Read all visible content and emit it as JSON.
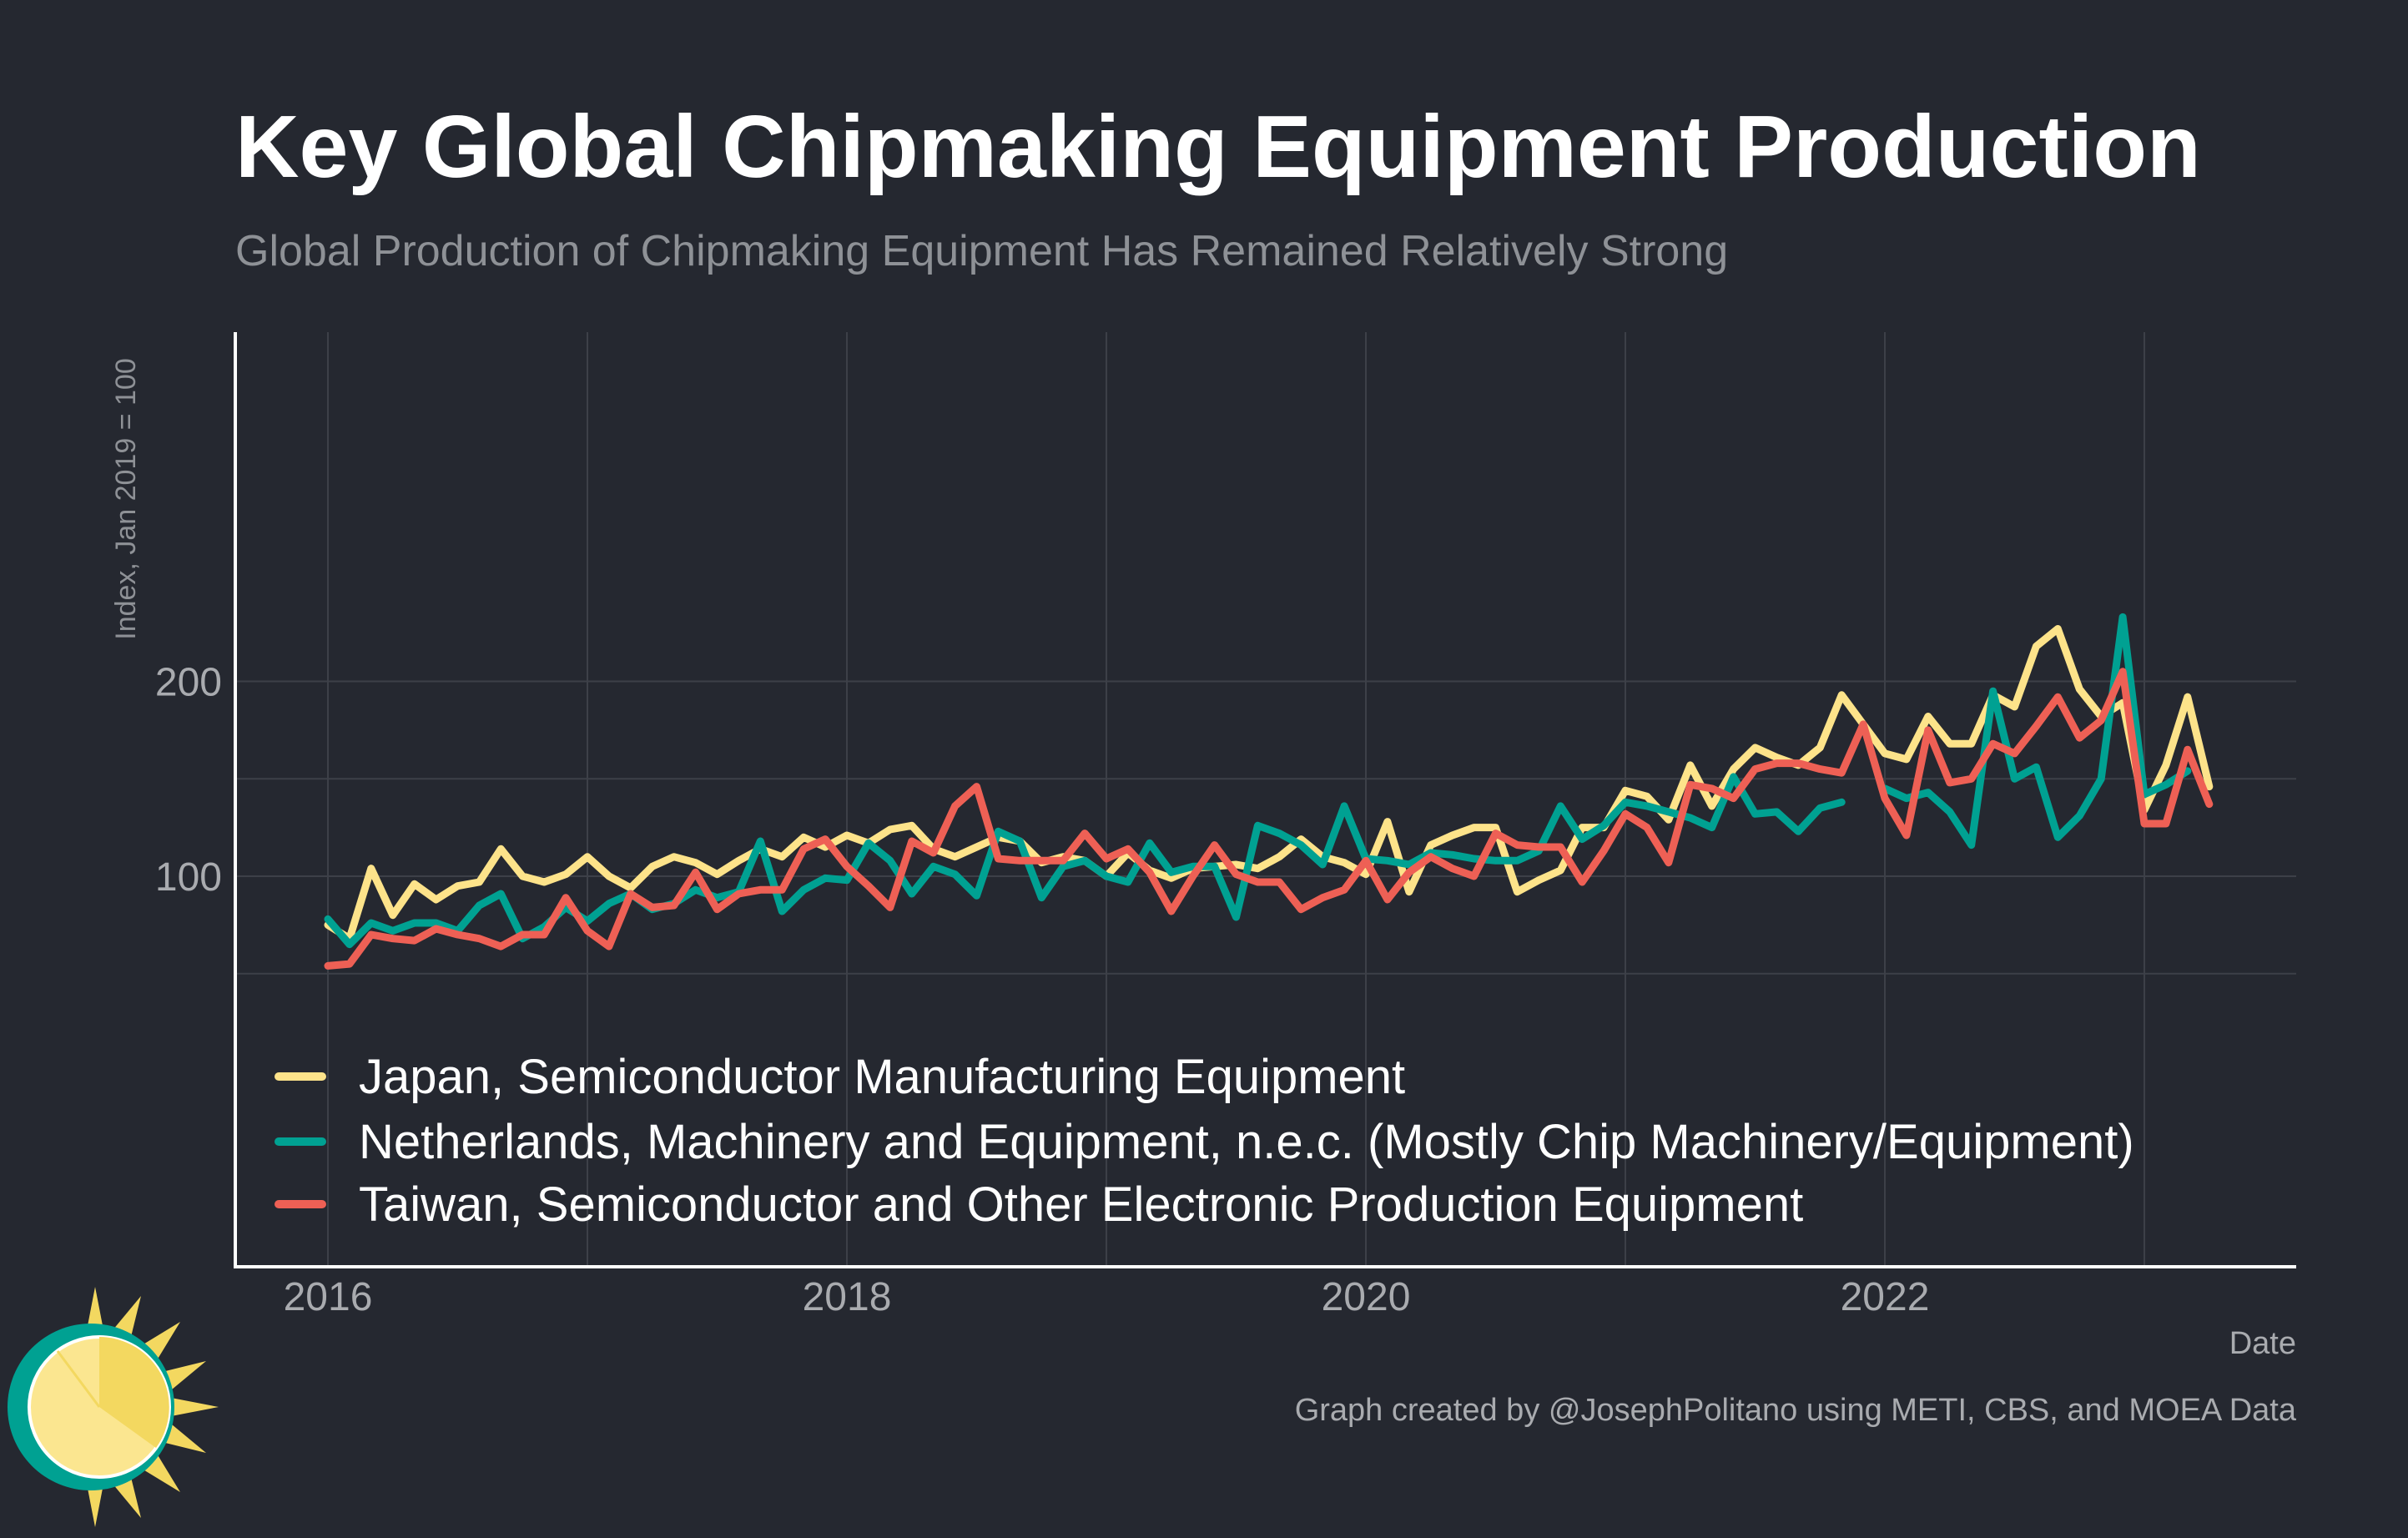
{
  "chart_data": {
    "type": "line",
    "title": "Key Global Chipmaking Equipment Production",
    "subtitle": "Global Production of Chipmaking Equipment Has Remained Relatively Strong",
    "ylabel": "Index, Jan 2019 = 100",
    "xlabel": "Date",
    "caption": "Graph created by @JosephPolitano using METI, CBS, and MOEA Data",
    "x_ticks": [
      "2016",
      "2018",
      "2020",
      "2022"
    ],
    "y_ticks": [
      "100",
      "200"
    ],
    "ylim": [
      0,
      240
    ],
    "xlim": [
      "2015-08",
      "2023-09"
    ],
    "grid": true,
    "legend_position": "bottom-left",
    "series": [
      {
        "name": "Japan, Semiconductor Manufacturing Equipment",
        "color": "#fde38a",
        "start": "2016-01",
        "values": [
          75,
          68,
          104,
          80,
          96,
          88,
          95,
          97,
          114,
          100,
          97,
          101,
          110,
          100,
          94,
          105,
          110,
          107,
          101,
          108,
          114,
          110,
          120,
          115,
          121,
          117,
          124,
          126,
          114,
          110,
          115,
          120,
          118,
          107,
          110,
          108,
          100,
          112,
          103,
          99,
          104,
          105,
          106,
          104,
          110,
          119,
          110,
          107,
          101,
          128,
          92,
          116,
          121,
          125,
          125,
          92,
          98,
          103,
          125,
          125,
          144,
          141,
          129,
          157,
          136,
          155,
          166,
          161,
          157,
          166,
          193,
          178,
          163,
          160,
          182,
          168,
          168,
          193,
          187,
          218,
          227,
          196,
          182,
          189,
          134,
          157,
          192,
          146
        ],
        "gaps": []
      },
      {
        "name": "Netherlands, Machinery and Equipment, n.e.c. (Mostly Chip Machinery/Equipment)",
        "color": "#00a192",
        "start": "2016-01",
        "values": [
          78,
          65,
          76,
          72,
          76,
          76,
          72,
          85,
          91,
          68,
          74,
          84,
          77,
          86,
          91,
          83,
          86,
          93,
          89,
          92,
          118,
          82,
          93,
          99,
          98,
          117,
          108,
          91,
          105,
          101,
          90,
          123,
          118,
          89,
          105,
          108,
          100,
          97,
          117,
          102,
          105,
          105,
          79,
          126,
          122,
          116,
          106,
          136,
          109,
          108,
          106,
          112,
          111,
          109,
          108,
          108,
          113,
          136,
          119,
          126,
          138,
          136,
          133,
          130,
          125,
          151,
          132,
          133,
          123,
          135,
          138,
          null,
          145,
          140,
          143,
          133,
          116,
          195,
          150,
          156,
          120,
          131,
          150,
          233,
          142,
          147,
          154
        ],
        "gaps": [
          "2021-11"
        ]
      },
      {
        "name": "Taiwan, Semiconductor and Other Electronic Production Equipment",
        "color": "#ee6055",
        "start": "2016-01",
        "values": [
          54,
          55,
          70,
          68,
          67,
          73,
          70,
          68,
          64,
          70,
          70,
          89,
          72,
          64,
          91,
          84,
          85,
          102,
          83,
          91,
          93,
          93,
          114,
          119,
          105,
          95,
          84,
          118,
          112,
          136,
          146,
          109,
          108,
          108,
          108,
          122,
          109,
          114,
          102,
          82,
          100,
          116,
          101,
          97,
          97,
          83,
          89,
          93,
          108,
          88,
          102,
          110,
          104,
          100,
          122,
          116,
          115,
          115,
          97,
          113,
          132,
          125,
          107,
          147,
          145,
          140,
          155,
          158,
          158,
          155,
          153,
          178,
          140,
          121,
          175,
          148,
          150,
          168,
          163,
          177,
          192,
          171,
          180,
          205,
          127,
          127,
          165,
          137
        ],
        "gaps": []
      }
    ]
  }
}
